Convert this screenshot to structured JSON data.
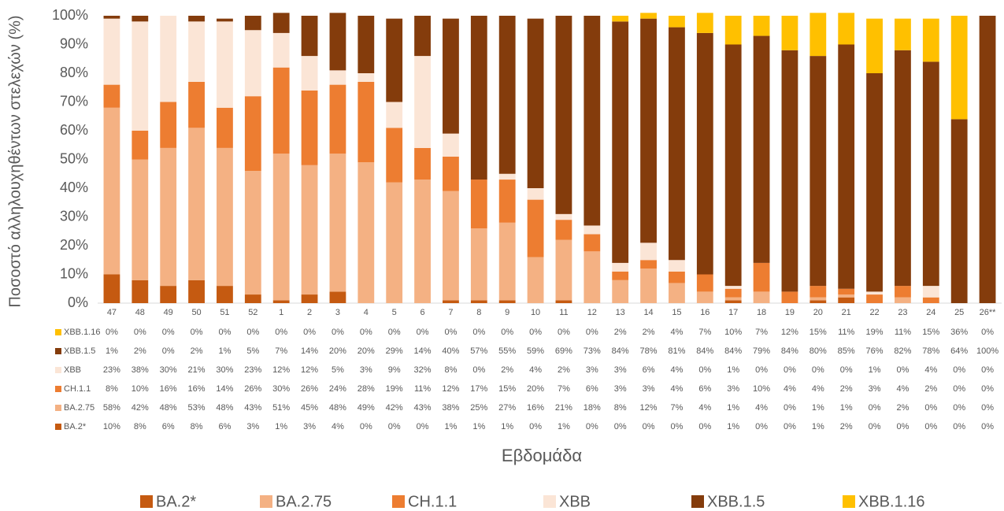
{
  "chart_data": {
    "type": "stacked-bar",
    "x_label": "Εβδομάδα",
    "y_label": "Ποσοστό αλληλουχηθέντων στελεχών (%)",
    "categories": [
      "47",
      "48",
      "49",
      "50",
      "51",
      "52",
      "1",
      "2",
      "3",
      "4",
      "5",
      "6",
      "7",
      "8",
      "9",
      "10",
      "11",
      "12",
      "13",
      "14",
      "15",
      "16",
      "17",
      "18",
      "19",
      "20",
      "21",
      "22",
      "23",
      "24",
      "25",
      "26**"
    ],
    "ylim": [
      0,
      100
    ],
    "yticks": [
      {
        "value": 0,
        "label": "0%"
      },
      {
        "value": 10,
        "label": "10%"
      },
      {
        "value": 20,
        "label": "20%"
      },
      {
        "value": 30,
        "label": "30%"
      },
      {
        "value": 40,
        "label": "40%"
      },
      {
        "value": 50,
        "label": "50%"
      },
      {
        "value": 60,
        "label": "60%"
      },
      {
        "value": 70,
        "label": "70%"
      },
      {
        "value": 80,
        "label": "80%"
      },
      {
        "value": 90,
        "label": "90%"
      },
      {
        "value": 100,
        "label": "100%"
      }
    ],
    "grid": false,
    "legend": "bottom",
    "series": [
      {
        "name": "BA.2*",
        "color": "#c55a11",
        "values": [
          10,
          8,
          6,
          8,
          6,
          3,
          1,
          3,
          4,
          0,
          0,
          0,
          1,
          1,
          1,
          0,
          1,
          0,
          0,
          0,
          0,
          0,
          1,
          0,
          0,
          1,
          2,
          0,
          0,
          0,
          0,
          0
        ],
        "value_labels": [
          "10%",
          "8%",
          "6%",
          "8%",
          "6%",
          "3%",
          "1%",
          "3%",
          "4%",
          "0%",
          "0%",
          "0%",
          "1%",
          "1%",
          "1%",
          "0%",
          "1%",
          "0%",
          "0%",
          "0%",
          "0%",
          "0%",
          "1%",
          "0%",
          "0%",
          "1%",
          "2%",
          "0%",
          "0%",
          "0%",
          "0%",
          "0%"
        ]
      },
      {
        "name": "BA.2.75",
        "color": "#f4b183",
        "values": [
          58,
          42,
          48,
          53,
          48,
          43,
          51,
          45,
          48,
          49,
          42,
          43,
          38,
          25,
          27,
          16,
          21,
          18,
          8,
          12,
          7,
          4,
          1,
          4,
          0,
          1,
          1,
          0,
          2,
          0,
          0,
          0
        ],
        "value_labels": [
          "58%",
          "42%",
          "48%",
          "53%",
          "48%",
          "43%",
          "51%",
          "45%",
          "48%",
          "49%",
          "42%",
          "43%",
          "38%",
          "25%",
          "27%",
          "16%",
          "21%",
          "18%",
          "8%",
          "12%",
          "7%",
          "4%",
          "1%",
          "4%",
          "0%",
          "1%",
          "1%",
          "0%",
          "2%",
          "0%",
          "0%",
          "0%"
        ]
      },
      {
        "name": "CH.1.1",
        "color": "#ed7d31",
        "values": [
          8,
          10,
          16,
          16,
          14,
          26,
          30,
          26,
          24,
          28,
          19,
          11,
          12,
          17,
          15,
          20,
          7,
          6,
          3,
          3,
          4,
          6,
          3,
          10,
          4,
          4,
          2,
          3,
          4,
          2,
          0,
          0
        ],
        "value_labels": [
          "8%",
          "10%",
          "16%",
          "16%",
          "14%",
          "26%",
          "30%",
          "26%",
          "24%",
          "28%",
          "19%",
          "11%",
          "12%",
          "17%",
          "15%",
          "20%",
          "7%",
          "6%",
          "3%",
          "3%",
          "4%",
          "6%",
          "3%",
          "10%",
          "4%",
          "4%",
          "2%",
          "3%",
          "4%",
          "2%",
          "0%",
          "0%"
        ]
      },
      {
        "name": "XBB",
        "color": "#fbe5d6",
        "values": [
          23,
          38,
          30,
          21,
          30,
          23,
          12,
          12,
          5,
          3,
          9,
          32,
          8,
          0,
          2,
          4,
          2,
          3,
          3,
          6,
          4,
          0,
          1,
          0,
          0,
          0,
          0,
          1,
          0,
          4,
          0,
          0
        ],
        "value_labels": [
          "23%",
          "38%",
          "30%",
          "21%",
          "30%",
          "23%",
          "12%",
          "12%",
          "5%",
          "3%",
          "9%",
          "32%",
          "8%",
          "0%",
          "2%",
          "4%",
          "2%",
          "3%",
          "3%",
          "6%",
          "4%",
          "0%",
          "1%",
          "0%",
          "0%",
          "0%",
          "0%",
          "1%",
          "0%",
          "4%",
          "0%",
          "0%"
        ]
      },
      {
        "name": "XBB.1.5",
        "color": "#843c0c",
        "values": [
          1,
          2,
          0,
          2,
          1,
          5,
          7,
          14,
          20,
          20,
          29,
          14,
          40,
          57,
          55,
          59,
          69,
          73,
          84,
          78,
          81,
          84,
          84,
          79,
          84,
          80,
          85,
          76,
          82,
          78,
          64,
          100
        ],
        "value_labels": [
          "1%",
          "2%",
          "0%",
          "2%",
          "1%",
          "5%",
          "7%",
          "14%",
          "20%",
          "20%",
          "29%",
          "14%",
          "40%",
          "57%",
          "55%",
          "59%",
          "69%",
          "73%",
          "84%",
          "78%",
          "81%",
          "84%",
          "84%",
          "79%",
          "84%",
          "80%",
          "85%",
          "76%",
          "82%",
          "78%",
          "64%",
          "100%"
        ]
      },
      {
        "name": "XBB.1.16",
        "color": "#ffc000",
        "values": [
          0,
          0,
          0,
          0,
          0,
          0,
          0,
          0,
          0,
          0,
          0,
          0,
          0,
          0,
          0,
          0,
          0,
          0,
          2,
          2,
          4,
          7,
          10,
          7,
          12,
          15,
          11,
          19,
          11,
          15,
          36,
          0
        ],
        "value_labels": [
          "0%",
          "0%",
          "0%",
          "0%",
          "0%",
          "0%",
          "0%",
          "0%",
          "0%",
          "0%",
          "0%",
          "0%",
          "0%",
          "0%",
          "0%",
          "0%",
          "0%",
          "0%",
          "2%",
          "2%",
          "4%",
          "7%",
          "10%",
          "7%",
          "12%",
          "15%",
          "11%",
          "19%",
          "11%",
          "15%",
          "36%",
          "0%"
        ]
      }
    ]
  }
}
